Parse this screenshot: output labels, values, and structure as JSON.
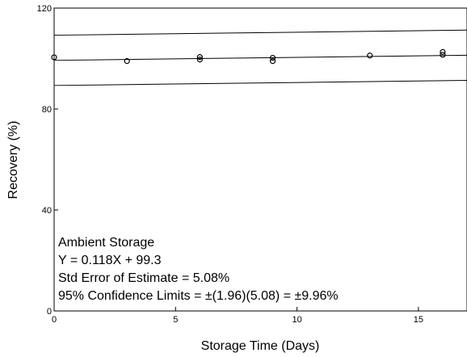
{
  "chart_data": {
    "type": "scatter",
    "title": "",
    "xlabel": "Storage Time (Days)",
    "ylabel": "Recovery (%)",
    "xlim": [
      0,
      17
    ],
    "ylim": [
      0,
      120
    ],
    "x_ticks": [
      {
        "value": 0,
        "label": "0"
      },
      {
        "value": 5,
        "label": "5"
      },
      {
        "value": 10,
        "label": "10"
      },
      {
        "value": 15,
        "label": "15"
      }
    ],
    "y_ticks": [
      {
        "value": 0,
        "label": "0"
      },
      {
        "value": 40,
        "label": "40"
      },
      {
        "value": 80,
        "label": "80"
      },
      {
        "value": 120,
        "label": "120"
      }
    ],
    "grid": false,
    "points": [
      {
        "x": 0,
        "y": 100.5
      },
      {
        "x": 3,
        "y": 99.0
      },
      {
        "x": 6,
        "y": 99.6
      },
      {
        "x": 6,
        "y": 100.6
      },
      {
        "x": 9,
        "y": 99.0
      },
      {
        "x": 9,
        "y": 100.3
      },
      {
        "x": 13,
        "y": 101.2
      },
      {
        "x": 16,
        "y": 101.5
      },
      {
        "x": 16,
        "y": 102.6
      }
    ],
    "lines": [
      {
        "label": "regression",
        "intercept": 99.3,
        "slope": 0.118
      },
      {
        "label": "upper-limit",
        "intercept": 109.26,
        "slope": 0.118
      },
      {
        "label": "lower-limit",
        "intercept": 89.34,
        "slope": 0.118
      }
    ],
    "annotations": [
      "Ambient Storage",
      "Y = 0.118X + 99.3",
      "Std Error of Estimate = 5.08%",
      "95% Confidence Limits = ±(1.96)(5.08) = ±9.96%"
    ]
  }
}
